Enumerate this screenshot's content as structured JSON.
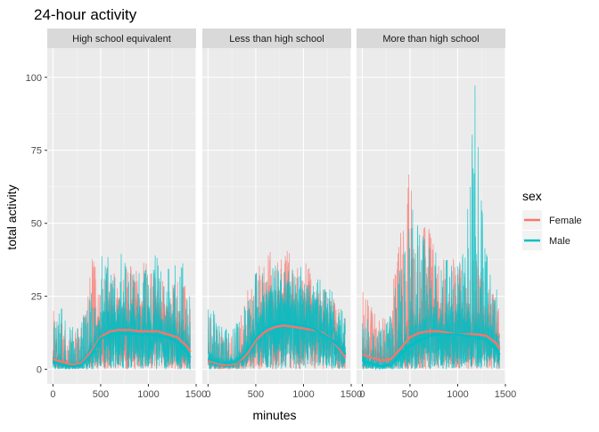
{
  "chart_data": {
    "type": "line",
    "title": "24-hour activity",
    "xlabel": "minutes",
    "ylabel": "total activity",
    "xlim": [
      -60,
      1500
    ],
    "ylim": [
      -5,
      110
    ],
    "x_ticks": [
      0,
      500,
      1000,
      1500
    ],
    "x_tick_labels": [
      "0",
      "500",
      "1000",
      "1500"
    ],
    "y_ticks": [
      0,
      25,
      50,
      75,
      100
    ],
    "y_tick_labels": [
      "0",
      "25",
      "50",
      "75",
      "100"
    ],
    "grid": true,
    "legend": {
      "title": "sex",
      "position": "right",
      "entries": [
        {
          "label": "Female",
          "color": "#F8766D"
        },
        {
          "label": "Male",
          "color": "#00BFC4"
        }
      ]
    },
    "facets": [
      {
        "label": "High school equivalent",
        "smooth": {
          "x": [
            0,
            100,
            200,
            300,
            400,
            500,
            600,
            700,
            800,
            900,
            1000,
            1100,
            1200,
            1300,
            1400,
            1440
          ],
          "Female": [
            3.5,
            2.5,
            1.5,
            2,
            6,
            11,
            13,
            13.5,
            13.5,
            13,
            13,
            13,
            12,
            11,
            8,
            6
          ],
          "Male": [
            2.5,
            1.5,
            1,
            1.5,
            5,
            10.5,
            12,
            12.5,
            12,
            12,
            12,
            11.5,
            11,
            9.5,
            6,
            4
          ]
        },
        "envelope": {
          "x": [
            0,
            60,
            120,
            180,
            240,
            300,
            360,
            420,
            480,
            540,
            600,
            660,
            720,
            780,
            840,
            900,
            960,
            1020,
            1080,
            1140,
            1200,
            1260,
            1320,
            1380,
            1440
          ],
          "Female": [
            30,
            18,
            15,
            14,
            14,
            16,
            24,
            42,
            36,
            34,
            38,
            36,
            34,
            38,
            34,
            36,
            38,
            34,
            33,
            30,
            33,
            31,
            30,
            29,
            25
          ],
          "Male": [
            26,
            22,
            20,
            16,
            14,
            16,
            22,
            28,
            34,
            44,
            42,
            38,
            40,
            36,
            38,
            34,
            36,
            34,
            40,
            36,
            34,
            40,
            42,
            36,
            25
          ]
        }
      },
      {
        "label": "Less than high school",
        "smooth": {
          "x": [
            0,
            100,
            200,
            300,
            400,
            500,
            600,
            700,
            800,
            900,
            1000,
            1100,
            1200,
            1300,
            1400,
            1440
          ],
          "Female": [
            3,
            2,
            1.5,
            2,
            5,
            10,
            13,
            14.5,
            15,
            14.5,
            14,
            13.5,
            12.5,
            10,
            6,
            4
          ],
          "Male": [
            3.5,
            2.5,
            2,
            2.5,
            6,
            11,
            14,
            15.5,
            16,
            15.5,
            15,
            14,
            12,
            10,
            7,
            5
          ]
        },
        "envelope": {
          "x": [
            0,
            60,
            120,
            180,
            240,
            300,
            360,
            420,
            480,
            540,
            600,
            660,
            720,
            780,
            840,
            900,
            960,
            1020,
            1080,
            1140,
            1200,
            1260,
            1320,
            1380,
            1440
          ],
          "Female": [
            22,
            16,
            13,
            12,
            12,
            14,
            20,
            30,
            34,
            36,
            42,
            44,
            40,
            38,
            42,
            36,
            34,
            38,
            33,
            30,
            28,
            26,
            24,
            20,
            20
          ],
          "Male": [
            24,
            20,
            15,
            14,
            14,
            16,
            20,
            26,
            32,
            36,
            34,
            38,
            40,
            36,
            38,
            34,
            36,
            32,
            34,
            32,
            30,
            28,
            26,
            22,
            20
          ]
        }
      },
      {
        "label": "More than high school",
        "smooth": {
          "x": [
            0,
            100,
            200,
            300,
            400,
            500,
            600,
            700,
            800,
            900,
            1000,
            1100,
            1200,
            1300,
            1400,
            1440
          ],
          "Female": [
            5,
            4,
            3,
            3.5,
            7,
            11,
            12.5,
            13,
            13,
            12.5,
            12,
            12,
            12,
            11.5,
            9,
            7
          ],
          "Male": [
            3,
            2,
            1,
            1.5,
            5,
            8,
            10,
            11.5,
            12,
            12,
            12,
            11.5,
            11,
            10,
            7,
            5
          ]
        },
        "envelope": {
          "x": [
            0,
            60,
            120,
            180,
            240,
            300,
            360,
            420,
            480,
            500,
            540,
            600,
            660,
            720,
            780,
            840,
            900,
            960,
            1020,
            1080,
            1140,
            1180,
            1240,
            1300,
            1360,
            1440
          ],
          "Female": [
            28,
            24,
            20,
            17,
            18,
            30,
            38,
            52,
            65,
            70,
            50,
            44,
            50,
            48,
            40,
            42,
            40,
            38,
            36,
            36,
            38,
            40,
            34,
            32,
            30,
            20
          ],
          "Male": [
            20,
            18,
            16,
            14,
            15,
            20,
            30,
            38,
            50,
            74,
            52,
            48,
            46,
            42,
            40,
            38,
            40,
            36,
            38,
            48,
            72,
            104,
            62,
            40,
            32,
            25
          ]
        }
      }
    ]
  }
}
